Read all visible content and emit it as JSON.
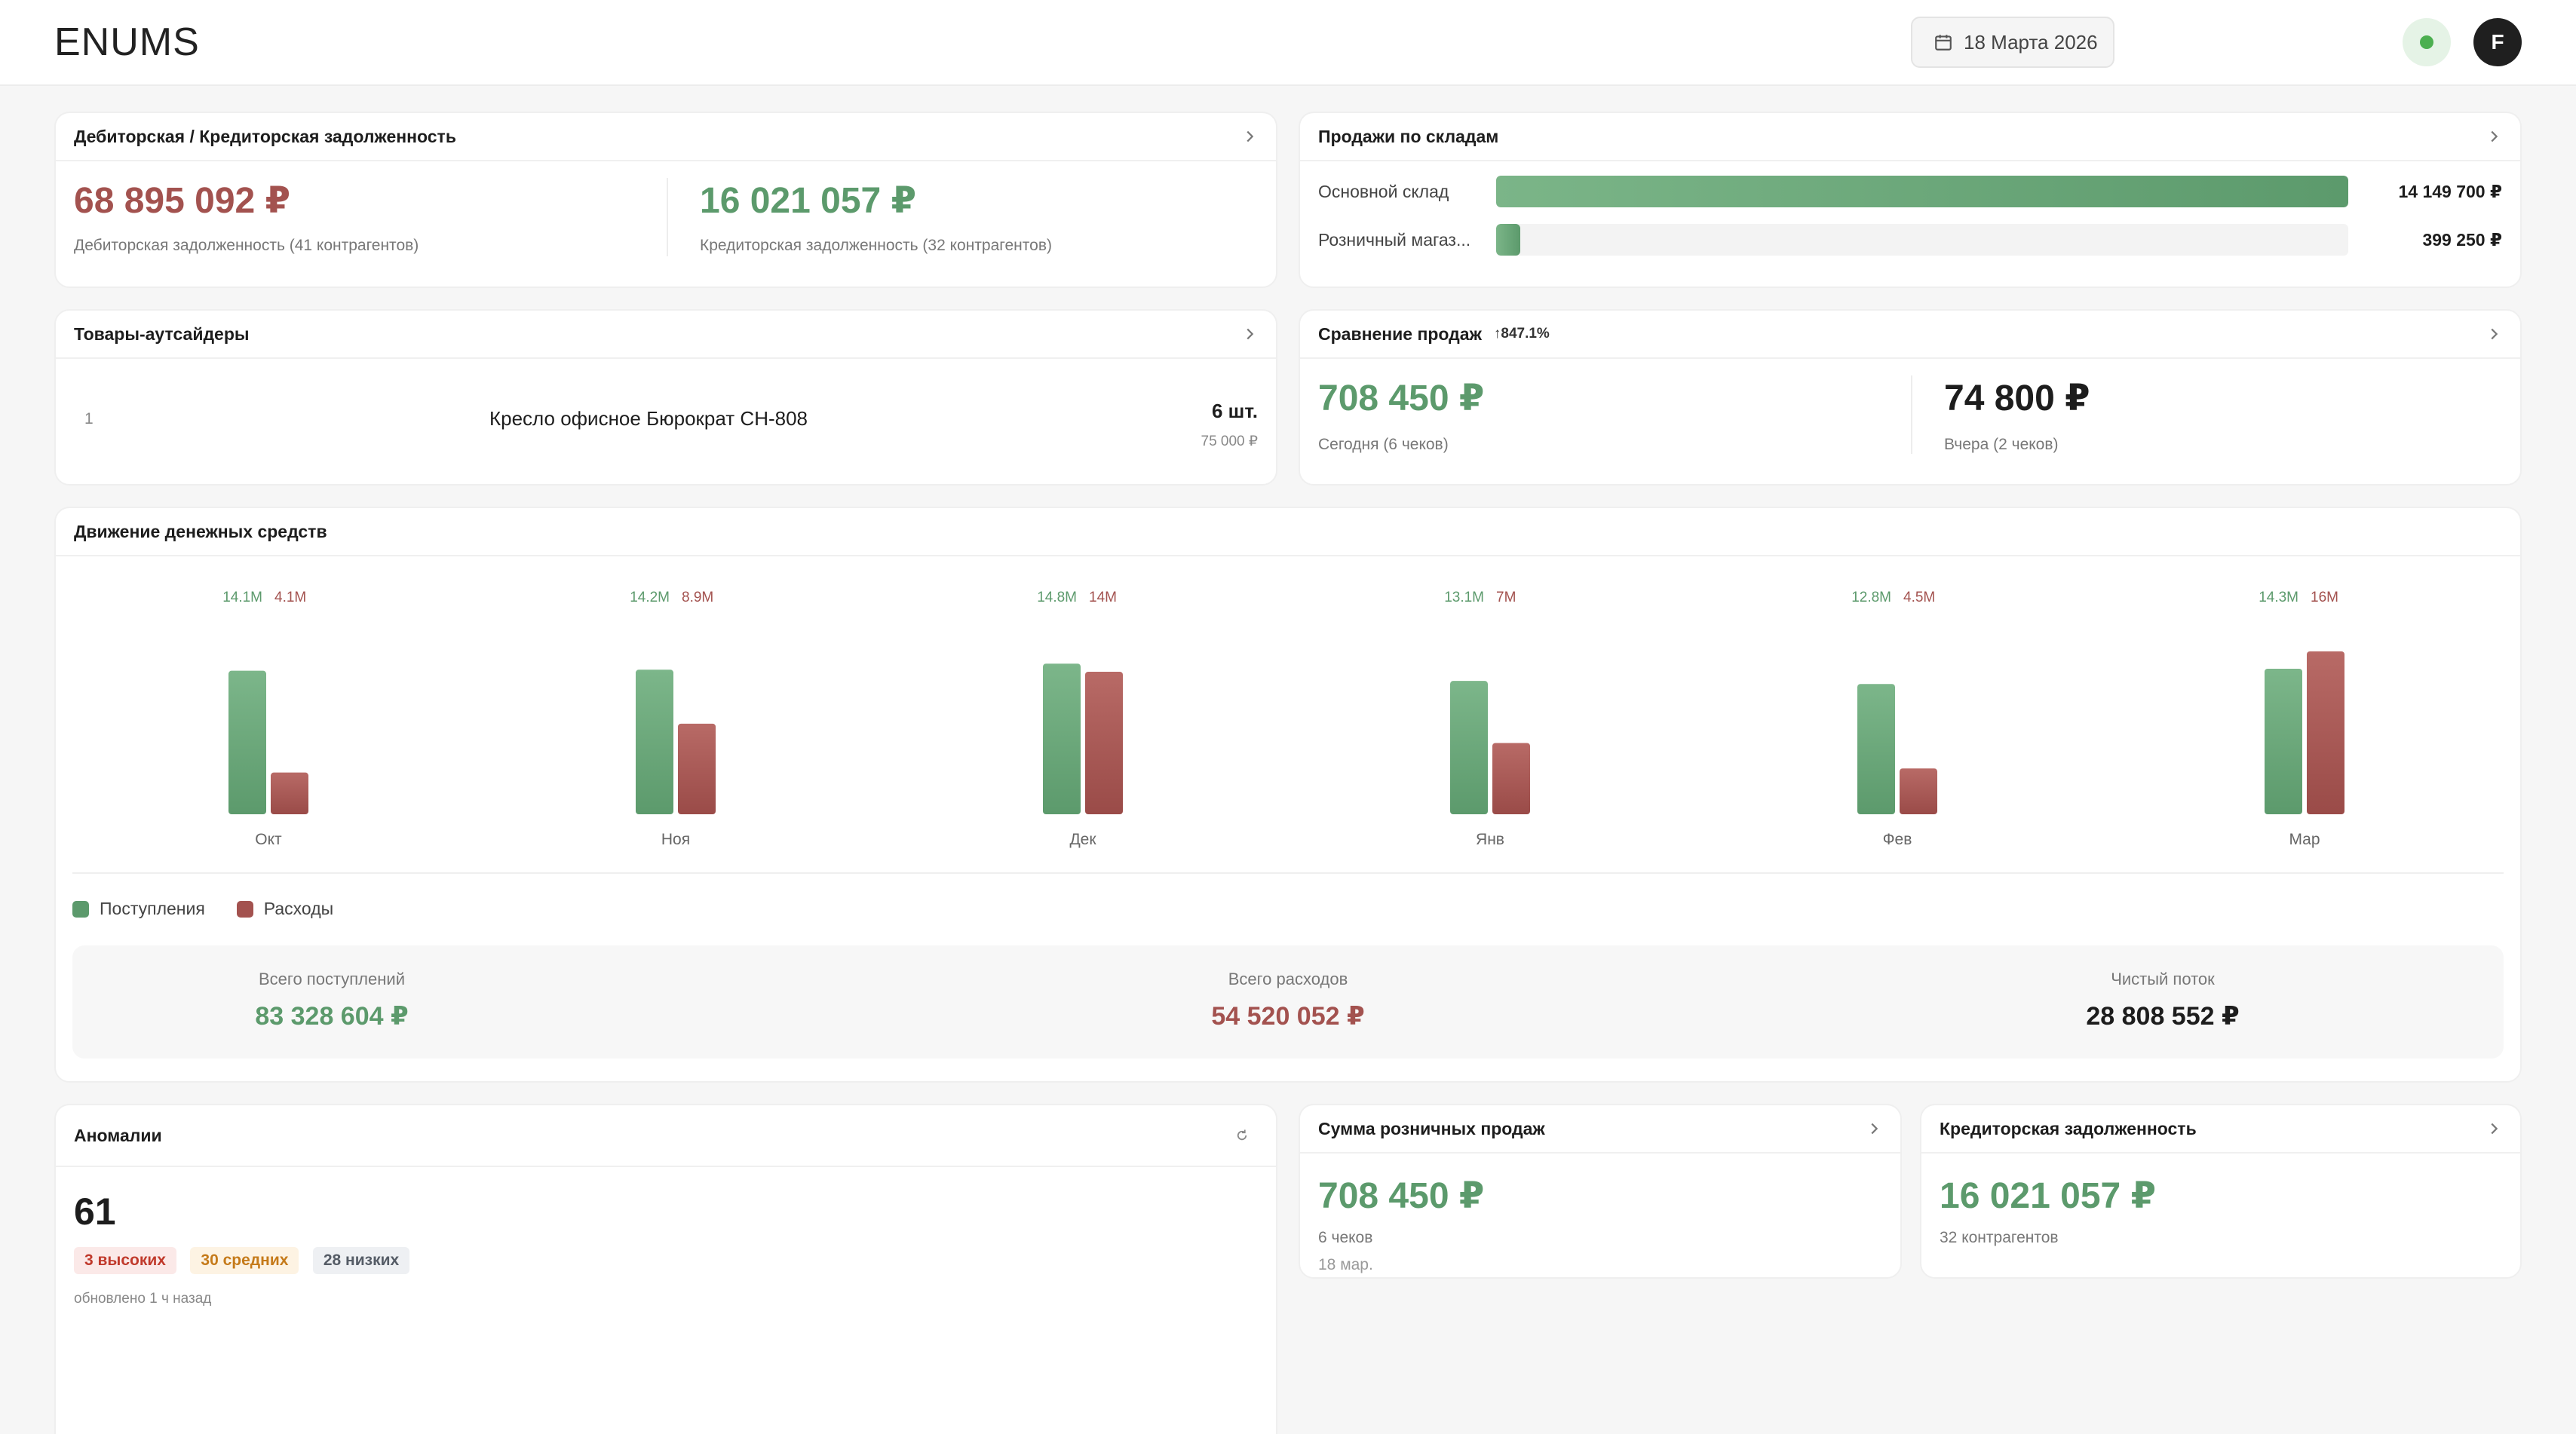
{
  "header": {
    "logo": "ENUMS",
    "date": "18 Марта 2026",
    "avatar_letter": "F"
  },
  "debt": {
    "title": "Дебиторская / Кредиторская задолженность",
    "receivable_amount": "68 895 092 ₽",
    "receivable_label": "Дебиторская задолженность (41 контрагентов)",
    "payable_amount": "16 021 057 ₽",
    "payable_label": "Кредиторская задолженность (32 контрагентов)"
  },
  "warehouses": {
    "title": "Продажи по складам",
    "items": [
      {
        "label": "Основной склад",
        "value": "14 149 700 ₽",
        "share": 1.0
      },
      {
        "label": "Розничный магаз...",
        "value": "399 250 ₽",
        "share": 0.028
      }
    ]
  },
  "outsiders": {
    "title": "Товары-аутсайдеры",
    "items": [
      {
        "rank": "1",
        "name": "Кресло офисное Бюрократ CH-808",
        "qty": "6 шт.",
        "price": "75 000 ₽"
      }
    ]
  },
  "comparison": {
    "title": "Сравнение продаж",
    "change": "↑847.1%",
    "today_amount": "708 450 ₽",
    "today_label": "Сегодня (6 чеков)",
    "yesterday_amount": "74 800 ₽",
    "yesterday_label": "Вчера (2 чеков)"
  },
  "cashflow": {
    "title": "Движение денежных средств",
    "legend_income": "Поступления",
    "legend_expense": "Расходы",
    "total_income_label": "Всего поступлений",
    "total_income": "83 328 604 ₽",
    "total_expense_label": "Всего расходов",
    "total_expense": "54 520 052 ₽",
    "net_label": "Чистый поток",
    "net": "28 808 552 ₽"
  },
  "chart_data": {
    "type": "bar",
    "categories": [
      "Окт",
      "Ноя",
      "Дек",
      "Янв",
      "Фев",
      "Мар"
    ],
    "series": [
      {
        "name": "Поступления",
        "values": [
          14.1,
          14.2,
          14.8,
          13.1,
          12.8,
          14.3
        ],
        "labels": [
          "14.1M",
          "14.2M",
          "14.8M",
          "13.1M",
          "12.8M",
          "14.3M"
        ],
        "color": "#6aa87a"
      },
      {
        "name": "Расходы",
        "values": [
          4.1,
          8.9,
          14,
          7,
          4.5,
          16
        ],
        "labels": [
          "4.1M",
          "8.9M",
          "14M",
          "7M",
          "4.5M",
          "16M"
        ],
        "color": "#a3524f"
      }
    ],
    "ylim": [
      0,
      16
    ]
  },
  "anomalies": {
    "title": "Аномалии",
    "count": "61",
    "high": "3 высоких",
    "mid": "30 средних",
    "low": "28 низких",
    "updated": "обновлено 1 ч назад"
  },
  "retail": {
    "title": "Сумма розничных продаж",
    "amount": "708 450 ₽",
    "checks": "6 чеков",
    "date": "18 мар."
  },
  "payables": {
    "title": "Кредиторская задолженность",
    "amount": "16 021 057 ₽",
    "label": "32 контрагентов"
  }
}
